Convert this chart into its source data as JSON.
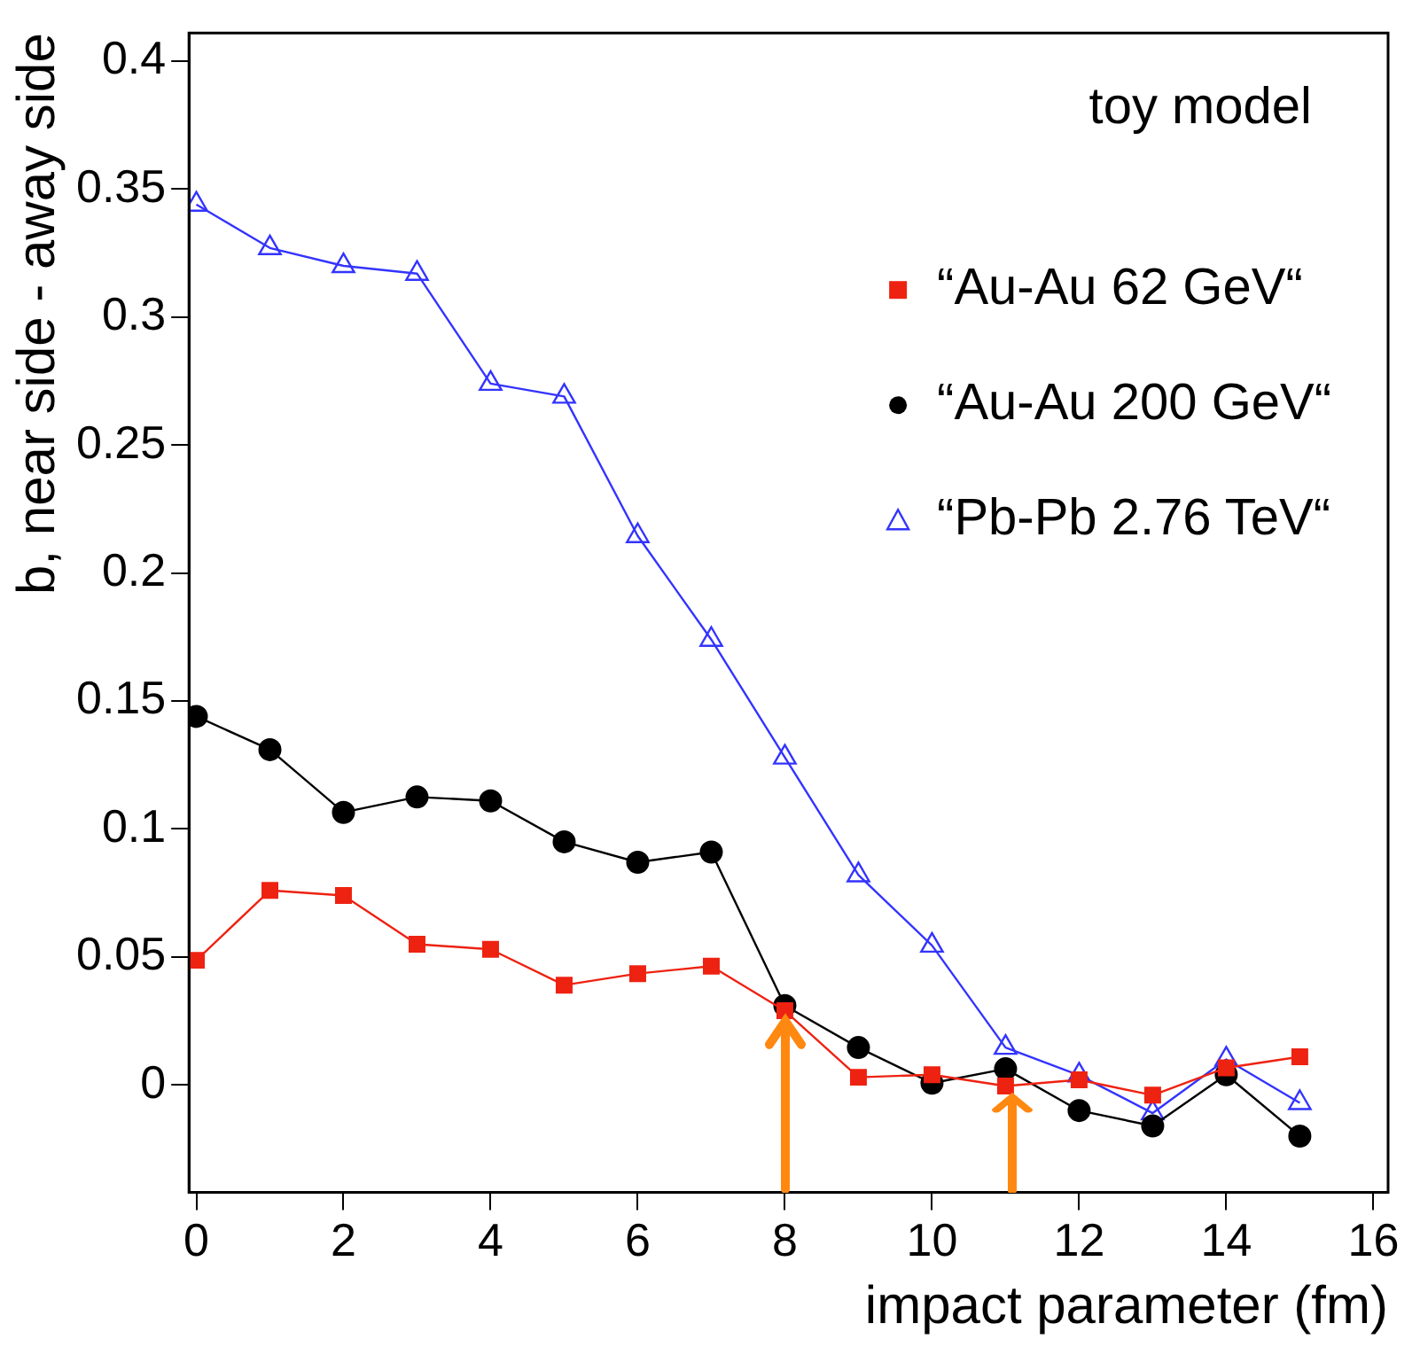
{
  "chart_data": {
    "type": "line",
    "xlabel": "impact parameter (fm)",
    "ylabel": "b, near side - away side",
    "annotations": [
      "toy model"
    ],
    "x": [
      0,
      1,
      2,
      3,
      4,
      5,
      6,
      7,
      8,
      9,
      10,
      11,
      12,
      13,
      14,
      15
    ],
    "series": [
      {
        "name": "“Au-Au 62 GeV“",
        "color": "#ee2211",
        "marker": "square",
        "values": [
          0.0487,
          0.076,
          0.074,
          0.055,
          0.053,
          0.039,
          0.0435,
          0.0464,
          0.029,
          0.003,
          0.004,
          -0.0004,
          0.002,
          -0.004,
          0.0067,
          0.011
        ]
      },
      {
        "name": "“Au-Au 200 GeV“",
        "color": "#000000",
        "marker": "circle",
        "values": [
          0.144,
          0.131,
          0.1065,
          0.1125,
          0.111,
          0.095,
          0.087,
          0.091,
          0.031,
          0.0146,
          0.0007,
          0.0063,
          -0.01,
          -0.016,
          0.004,
          -0.02
        ]
      },
      {
        "name": "“Pb-Pb 2.76 TeV“",
        "color": "#3333ff",
        "marker": "triangle",
        "values": [
          0.344,
          0.327,
          0.32,
          0.317,
          0.274,
          0.269,
          0.2145,
          0.174,
          0.128,
          0.082,
          0.0545,
          0.0146,
          0.0038,
          -0.011,
          0.01,
          -0.007
        ]
      }
    ],
    "xlim": [
      -0.1,
      16.2
    ],
    "xticks": [
      0,
      2,
      4,
      6,
      8,
      10,
      12,
      14,
      16
    ],
    "ylim": [
      -0.042,
      0.411
    ],
    "yticks": [
      0,
      0.05,
      0.1,
      0.15,
      0.2,
      0.25,
      0.3,
      0.35,
      0.4
    ],
    "grid": false,
    "legend": "top right",
    "line_style": "solid"
  }
}
